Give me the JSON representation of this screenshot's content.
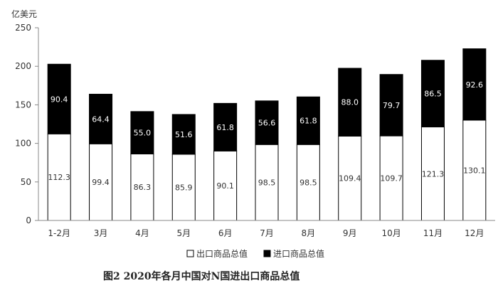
{
  "chart_data": {
    "type": "bar",
    "stacked": true,
    "title": "图2  2020年各月中国对N国进出口商品总值",
    "unit_label": "亿美元",
    "ylim": [
      0,
      250
    ],
    "yticks": [
      0,
      50,
      100,
      150,
      200,
      250
    ],
    "grid": false,
    "legend_position": "bottom",
    "categories": [
      "1-2月",
      "3月",
      "4月",
      "5月",
      "6月",
      "7月",
      "8月",
      "9月",
      "10月",
      "11月",
      "12月"
    ],
    "series": [
      {
        "name": "出口商品总值",
        "color": "#ffffff",
        "label_color": "#333333",
        "values": [
          112.3,
          99.4,
          86.3,
          85.9,
          90.1,
          98.5,
          98.5,
          109.4,
          109.7,
          121.3,
          130.1
        ]
      },
      {
        "name": "进口商品总值",
        "color": "#000000",
        "label_color": "#ffffff",
        "values": [
          90.4,
          64.4,
          55.0,
          51.6,
          61.8,
          56.6,
          61.8,
          88.0,
          79.7,
          86.5,
          92.6
        ]
      }
    ]
  }
}
